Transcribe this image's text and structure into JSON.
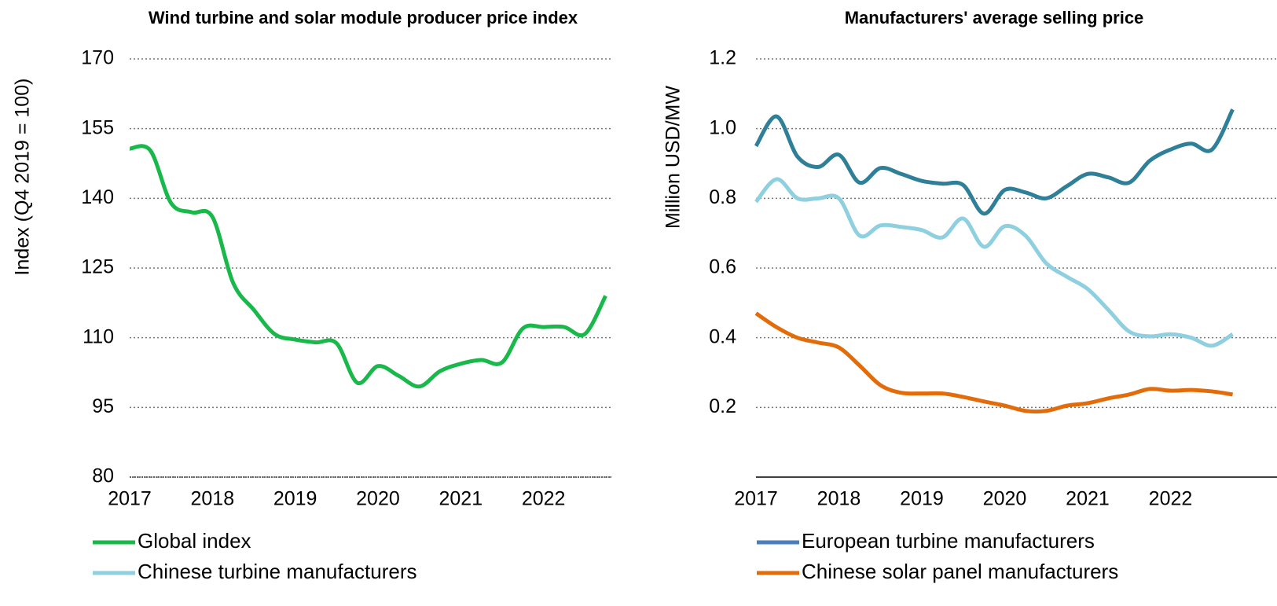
{
  "chart_data": [
    {
      "type": "line",
      "title": "Wind turbine and solar module producer price index",
      "ylabel": "Index (Q4 2019 = 100)",
      "x": [
        2017,
        2017.25,
        2017.5,
        2017.75,
        2018,
        2018.25,
        2018.5,
        2018.75,
        2019,
        2019.25,
        2019.5,
        2019.75,
        2020,
        2020.25,
        2020.5,
        2020.75,
        2021,
        2021.25,
        2021.5,
        2021.75,
        2022,
        2022.25,
        2022.5,
        2022.75
      ],
      "xlim": [
        2017,
        2022.82
      ],
      "xticks": [
        2017,
        2018,
        2019,
        2020,
        2021,
        2022
      ],
      "ylim": [
        80,
        170
      ],
      "yticks": [
        80,
        95,
        110,
        125,
        140,
        155,
        170
      ],
      "grid": true,
      "series": [
        {
          "name": "Global index",
          "color": "#19b84a",
          "values": [
            150.7,
            150.3,
            139,
            137,
            136,
            121.8,
            116,
            110.8,
            109.6,
            109,
            108.8,
            100.3,
            103.9,
            101.8,
            99.5,
            102.8,
            104.4,
            105.2,
            104.7,
            112,
            112.3,
            112.3,
            110.8,
            119
          ]
        }
      ]
    },
    {
      "type": "line",
      "title": "Manufacturers' average selling price",
      "ylabel": "Million USD/MW",
      "x": [
        2017,
        2017.25,
        2017.5,
        2017.75,
        2018,
        2018.25,
        2018.5,
        2018.75,
        2019,
        2019.25,
        2019.5,
        2019.75,
        2020,
        2020.25,
        2020.5,
        2020.75,
        2021,
        2021.25,
        2021.5,
        2021.75,
        2022,
        2022.25,
        2022.5,
        2022.75
      ],
      "xlim": [
        2017,
        2022.82
      ],
      "xticks": [
        2017,
        2018,
        2019,
        2020,
        2021,
        2022
      ],
      "ylim": [
        0,
        1.2
      ],
      "yticks": [
        {
          "value": 0.2,
          "label": "0.2"
        },
        {
          "value": 0.4,
          "label": "0.4"
        },
        {
          "value": 0.6,
          "label": "0.6"
        },
        {
          "value": 0.8,
          "label": "0.8"
        },
        {
          "value": 1.0,
          "label": "1.0"
        },
        {
          "value": 1.2,
          "label": "1.2"
        }
      ],
      "grid": true,
      "series": [
        {
          "name": "European turbine manufacturers",
          "color": "#2e7f97",
          "legend_color": "#4a7ebb",
          "values": [
            0.95,
            1.035,
            0.92,
            0.89,
            0.925,
            0.845,
            0.887,
            0.87,
            0.85,
            0.842,
            0.838,
            0.756,
            0.824,
            0.817,
            0.8,
            0.835,
            0.87,
            0.86,
            0.845,
            0.908,
            0.94,
            0.957,
            0.94,
            1.055
          ]
        },
        {
          "name": "Chinese turbine manufacturers",
          "color": "#8ecfe0",
          "values": [
            0.79,
            0.855,
            0.8,
            0.8,
            0.8,
            0.693,
            0.722,
            0.718,
            0.709,
            0.688,
            0.742,
            0.661,
            0.72,
            0.693,
            0.614,
            0.575,
            0.54,
            0.48,
            0.418,
            0.404,
            0.41,
            0.4,
            0.377,
            0.41
          ]
        },
        {
          "name": "Chinese solar panel manufacturers",
          "color": "#e36c0a",
          "values": [
            0.47,
            0.43,
            0.4,
            0.386,
            0.372,
            0.32,
            0.264,
            0.242,
            0.24,
            0.24,
            0.23,
            0.217,
            0.205,
            0.19,
            0.19,
            0.205,
            0.212,
            0.226,
            0.237,
            0.253,
            0.248,
            0.25,
            0.246,
            0.237
          ]
        }
      ]
    }
  ]
}
